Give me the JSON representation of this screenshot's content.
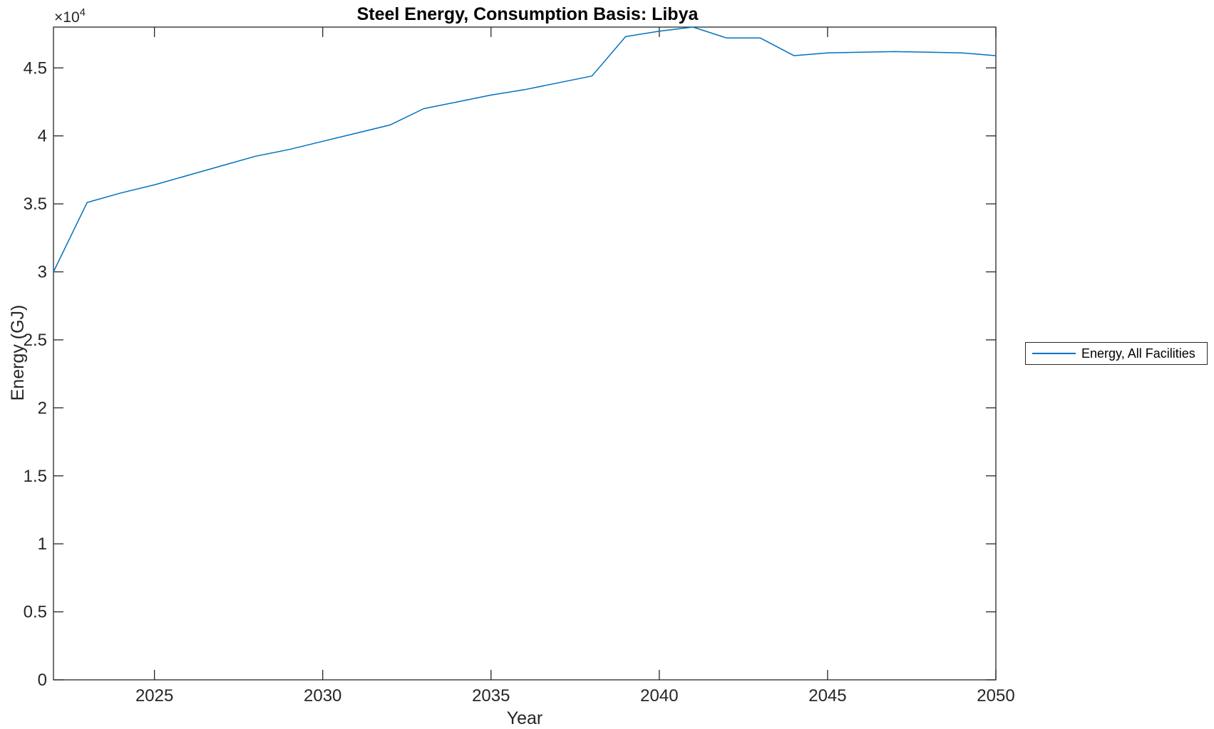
{
  "chart_data": {
    "type": "line",
    "title": "Steel Energy, Consumption Basis: Libya",
    "xlabel": "Year",
    "ylabel": "Energy (GJ)",
    "y_multiplier_base": "×10",
    "y_multiplier_exp": "4",
    "xlim": [
      2022,
      2050
    ],
    "ylim": [
      0,
      48000
    ],
    "xticks": [
      2025,
      2030,
      2035,
      2040,
      2045,
      2050
    ],
    "xtick_labels": [
      "2025",
      "2030",
      "2035",
      "2040",
      "2045",
      "2050"
    ],
    "yticks": [
      0,
      5000,
      10000,
      15000,
      20000,
      25000,
      30000,
      35000,
      40000,
      45000
    ],
    "ytick_labels": [
      "0",
      "0.5",
      "1",
      "1.5",
      "2",
      "2.5",
      "3",
      "3.5",
      "4",
      "4.5"
    ],
    "grid": false,
    "axis_color": "#262626",
    "background_color": "#ffffff",
    "legend": {
      "position": "right-outside",
      "entries": [
        "Energy, All Facilities"
      ]
    },
    "x": [
      2022,
      2023,
      2024,
      2025,
      2026,
      2027,
      2028,
      2029,
      2030,
      2031,
      2032,
      2033,
      2034,
      2035,
      2036,
      2037,
      2038,
      2039,
      2040,
      2041,
      2042,
      2043,
      2044,
      2045,
      2046,
      2047,
      2048,
      2049,
      2050
    ],
    "series": [
      {
        "name": "Energy, All Facilities",
        "color": "#0072BD",
        "values": [
          30000,
          35100,
          35800,
          36400,
          37100,
          37800,
          38500,
          39000,
          39600,
          40200,
          40800,
          42000,
          42500,
          43000,
          43400,
          43900,
          44400,
          47300,
          47700,
          48000,
          47200,
          47200,
          45900,
          46100,
          46150,
          46200,
          46150,
          46100,
          45900
        ]
      }
    ]
  }
}
